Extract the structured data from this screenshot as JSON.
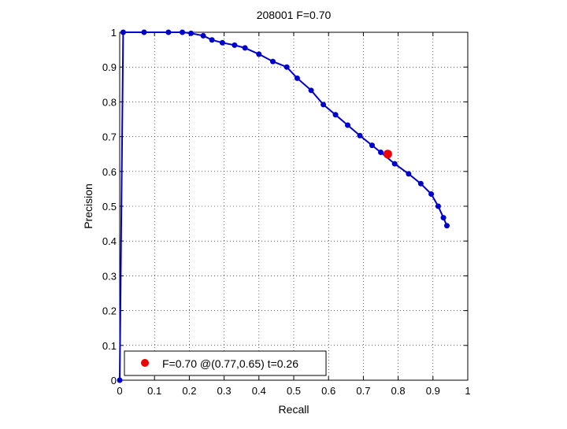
{
  "chart_data": {
    "type": "line",
    "title": "208001 F=0.70",
    "xlabel": "Recall",
    "ylabel": "Precision",
    "xlim": [
      0,
      1
    ],
    "ylim": [
      0,
      1
    ],
    "grid": true,
    "grid_style": "dotted",
    "x_ticks": [
      0,
      0.1,
      0.2,
      0.3,
      0.4,
      0.5,
      0.6,
      0.7,
      0.8,
      0.9,
      1
    ],
    "x_tick_labels": [
      "0",
      "0.1",
      "0.2",
      "0.3",
      "0.4",
      "0.5",
      "0.6",
      "0.7",
      "0.8",
      "0.9",
      "1"
    ],
    "y_ticks": [
      0,
      0.1,
      0.2,
      0.3,
      0.4,
      0.5,
      0.6,
      0.7,
      0.8,
      0.9,
      1
    ],
    "y_tick_labels": [
      "0",
      "0.1",
      "0.2",
      "0.3",
      "0.4",
      "0.5",
      "0.6",
      "0.7",
      "0.8",
      "0.9",
      "1"
    ],
    "series": [
      {
        "color": "#0000cc",
        "marker": "circle",
        "x": [
          0.0,
          0.01,
          0.07,
          0.14,
          0.18,
          0.205,
          0.24,
          0.265,
          0.295,
          0.33,
          0.36,
          0.4,
          0.44,
          0.48,
          0.51,
          0.55,
          0.585,
          0.62,
          0.655,
          0.69,
          0.725,
          0.75,
          0.79,
          0.83,
          0.865,
          0.895,
          0.915,
          0.93,
          0.94
        ],
        "y": [
          0.0,
          1.0,
          1.0,
          1.0,
          1.0,
          0.997,
          0.99,
          0.978,
          0.97,
          0.963,
          0.955,
          0.937,
          0.916,
          0.9,
          0.868,
          0.833,
          0.792,
          0.763,
          0.733,
          0.703,
          0.675,
          0.655,
          0.622,
          0.593,
          0.565,
          0.535,
          0.5,
          0.467,
          0.444
        ]
      }
    ],
    "highlight_point": {
      "x": 0.77,
      "y": 0.65,
      "color": "#ee0000"
    },
    "legend": {
      "position": "bottom-left",
      "entries": [
        {
          "label": "F=0.70 @(0.77,0.65) t=0.26",
          "color": "#ee0000",
          "marker": "circle"
        }
      ]
    }
  }
}
